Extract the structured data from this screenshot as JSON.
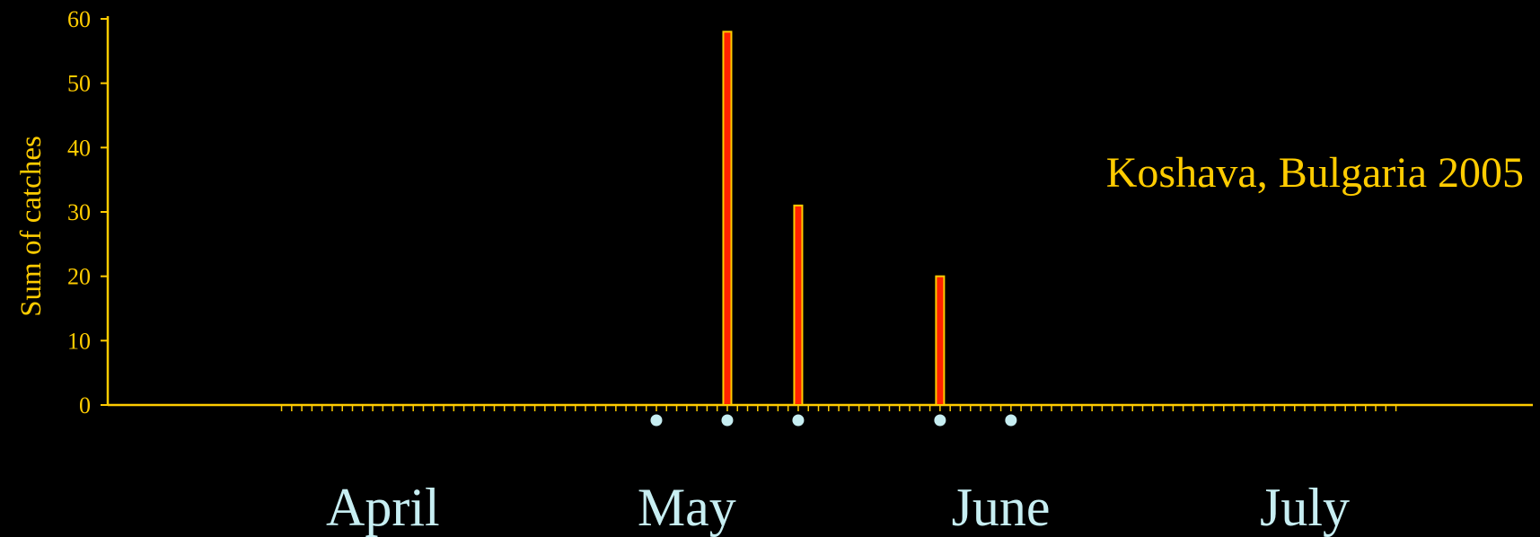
{
  "chart_data": {
    "type": "bar",
    "title": "",
    "annotation": "Koshava, Bulgaria 2005",
    "ylabel": "Sum of catches",
    "xlabel": "",
    "ylim": [
      0,
      60
    ],
    "yticks": [
      "0",
      "10",
      "20",
      "30",
      "40",
      "50",
      "60"
    ],
    "x_domain": [
      "2005-03-27",
      "2005-07-29"
    ],
    "x_month_labels": [
      {
        "label": "April",
        "date": "2005-04-15"
      },
      {
        "label": "May",
        "date": "2005-05-15"
      },
      {
        "label": "June",
        "date": "2005-06-15"
      },
      {
        "label": "July",
        "date": "2005-07-15"
      }
    ],
    "series": [
      {
        "x": [
          "2005-05-19",
          "2005-05-26",
          "2005-06-09"
        ],
        "values": [
          58,
          31,
          20
        ]
      }
    ],
    "sampling_dates": [
      "2005-05-12",
      "2005-05-19",
      "2005-05-26",
      "2005-06-09",
      "2005-06-16"
    ],
    "daily_ticks_range": [
      "2005-04-05",
      "2005-07-24"
    ],
    "grid": false,
    "colors": {
      "axis": "#ffcc00",
      "bar_fill": "#ff2200",
      "bar_edge": "#ffcc00",
      "marker": "#c7eef2",
      "month_text": "#c7eef2",
      "background": "#000000"
    }
  }
}
